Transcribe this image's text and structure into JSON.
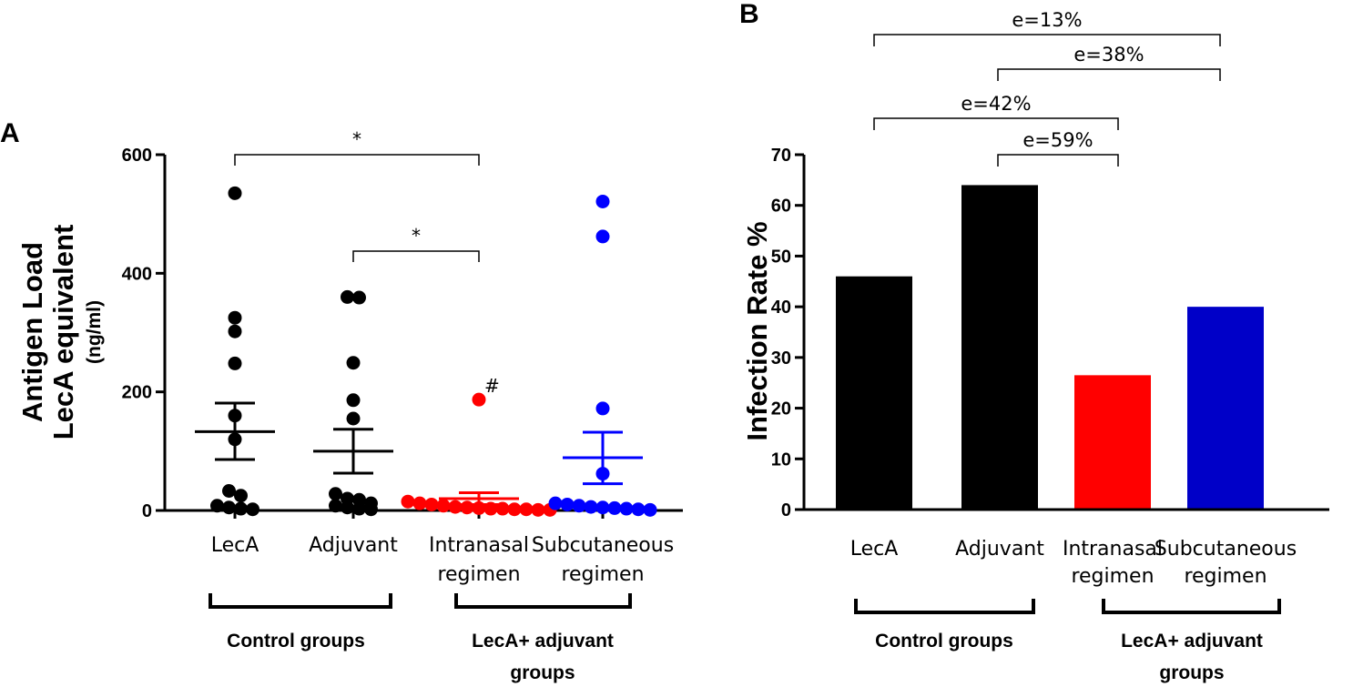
{
  "colors": {
    "control": "#000000",
    "intranasal": "#ff0000",
    "subcutaneous": "#0000ff",
    "subcutaneous_bar": "#0000c8",
    "axis": "#000000"
  },
  "panel_a": {
    "label": "A",
    "ylabel_line1": "Antigen Load",
    "ylabel_line2": "LecA equivalent",
    "ylabel_unit": "(ng/ml)",
    "sig_labels": [
      "*",
      "*"
    ],
    "hash_label": "#",
    "group_labels": [
      "Control groups",
      "LecA+ adjuvant",
      "groups"
    ]
  },
  "panel_b": {
    "label": "B",
    "group_labels": [
      "Control groups",
      "LecA+ adjuvant",
      "groups"
    ],
    "efficacy_labels": [
      "e=13%",
      "e=38%",
      "e=42%",
      "e=59%"
    ]
  },
  "chart_data": [
    {
      "type": "scatter",
      "ylabel": "Antigen Load LecA equivalent (ng/ml)",
      "ylim": [
        0,
        600
      ],
      "yticks": [
        0,
        200,
        400,
        600
      ],
      "categories": [
        {
          "line1": "LecA",
          "line2": ""
        },
        {
          "line1": "Adjuvant",
          "line2": ""
        },
        {
          "line1": "Intranasal",
          "line2": "regimen"
        },
        {
          "line1": "Subcutaneous",
          "line2": "regimen"
        }
      ],
      "series": [
        {
          "name": "LecA",
          "color": "#000000",
          "mean": 133,
          "sem_low": 86,
          "sem_high": 181,
          "points": [
            535,
            325,
            302,
            248,
            160,
            120,
            33,
            25,
            8,
            5,
            3,
            2
          ]
        },
        {
          "name": "Adjuvant",
          "color": "#000000",
          "mean": 100,
          "sem_low": 63,
          "sem_high": 137,
          "points": [
            360,
            359,
            249,
            186,
            155,
            28,
            20,
            12,
            8,
            5,
            3,
            2,
            18
          ]
        },
        {
          "name": "Intranasal regimen",
          "color": "#ff0000",
          "mean": 20,
          "sem_low": 10,
          "sem_high": 30,
          "points": [
            187,
            15,
            12,
            10,
            8,
            6,
            5,
            4,
            3,
            3,
            2,
            2,
            1,
            1
          ]
        },
        {
          "name": "Subcutaneous regimen",
          "color": "#0000ff",
          "mean": 89,
          "sem_low": 45,
          "sem_high": 132,
          "points": [
            521,
            462,
            172,
            62,
            12,
            10,
            8,
            6,
            5,
            4,
            3,
            2,
            1
          ]
        }
      ],
      "annotations": [
        {
          "from": 0,
          "to": 2,
          "label": "*"
        },
        {
          "from": 1,
          "to": 2,
          "label": "*"
        },
        {
          "at": 2,
          "value": 187,
          "label": "#"
        }
      ]
    },
    {
      "type": "bar",
      "ylabel": "Infection Rate %",
      "ylim": [
        0,
        70
      ],
      "yticks": [
        0,
        10,
        20,
        30,
        40,
        50,
        60,
        70
      ],
      "categories": [
        {
          "line1": "LecA",
          "line2": ""
        },
        {
          "line1": "Adjuvant",
          "line2": ""
        },
        {
          "line1": "Intranasal",
          "line2": "regimen"
        },
        {
          "line1": "Subcutaneous",
          "line2": "regimen"
        }
      ],
      "values": [
        46,
        64,
        26.5,
        40
      ],
      "bar_colors": [
        "#000000",
        "#000000",
        "#ff0000",
        "#0000c8"
      ],
      "comparisons": [
        {
          "from": 0,
          "to": 3,
          "label": "e=13%"
        },
        {
          "from": 1,
          "to": 3,
          "label": "e=38%"
        },
        {
          "from": 0,
          "to": 2,
          "label": "e=42%"
        },
        {
          "from": 1,
          "to": 2,
          "label": "e=59%"
        }
      ]
    }
  ]
}
